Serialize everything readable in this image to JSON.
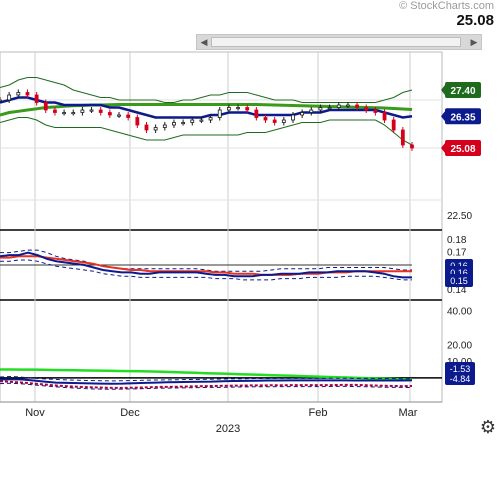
{
  "header": {
    "watermark": "© StockCharts.com",
    "last_price": "25.08"
  },
  "colors": {
    "price_candle_up": "#1a1a1a",
    "price_candle_down": "#d4001c",
    "bollinger": "#1e6b1e",
    "ma_short": "#0b1a8c",
    "ma_long": "#3a9a1a",
    "panel2_blue": "#0b1a8c",
    "panel2_red": "#e8311e",
    "panel3_green": "#22dd22",
    "panel3_blue": "#0b1a8c",
    "panel3_red": "#b0003c",
    "tag_green": "#1e6b1e",
    "tag_blue": "#0b1a8c",
    "tag_red": "#d4001c"
  },
  "chart_data": [
    {
      "type": "line",
      "panel": "price",
      "x_labels": [
        "Nov",
        "Dec",
        "Feb",
        "Mar"
      ],
      "x_year_label": "2023",
      "y_ticks": [
        "22.50"
      ],
      "price_tags": [
        "27.40",
        "26.35",
        "25.08"
      ],
      "ylim": [
        22.0,
        28.6
      ],
      "series": [
        {
          "role": "close",
          "values": [
            27.0,
            27.2,
            27.3,
            27.2,
            26.9,
            26.6,
            26.5,
            26.5,
            26.5,
            26.6,
            26.6,
            26.5,
            26.4,
            26.4,
            26.3,
            26.0,
            25.8,
            25.9,
            26.0,
            26.1,
            26.1,
            26.2,
            26.2,
            26.3,
            26.6,
            26.7,
            26.7,
            26.6,
            26.3,
            26.2,
            26.1,
            26.2,
            26.4,
            26.5,
            26.6,
            26.7,
            26.7,
            26.8,
            26.8,
            26.7,
            26.6,
            26.5,
            26.2,
            25.8,
            25.2,
            25.08
          ]
        },
        {
          "role": "ma_short",
          "values": [
            26.9,
            27.0,
            27.1,
            27.1,
            27.0,
            26.9,
            26.9,
            26.8,
            26.8,
            26.8,
            26.8,
            26.8,
            26.7,
            26.7,
            26.6,
            26.5,
            26.4,
            26.3,
            26.3,
            26.3,
            26.3,
            26.3,
            26.3,
            26.4,
            26.4,
            26.5,
            26.5,
            26.5,
            26.4,
            26.4,
            26.4,
            26.4,
            26.4,
            26.5,
            26.5,
            26.5,
            26.6,
            26.6,
            26.6,
            26.6,
            26.6,
            26.6,
            26.5,
            26.4,
            26.3,
            26.35
          ]
        },
        {
          "role": "ma_long",
          "values": [
            26.4,
            26.5,
            26.55,
            26.6,
            26.65,
            26.7,
            26.72,
            26.75,
            26.77,
            26.78,
            26.8,
            26.8,
            26.81,
            26.82,
            26.82,
            26.82,
            26.82,
            26.82,
            26.82,
            26.82,
            26.82,
            26.82,
            26.82,
            26.82,
            26.82,
            26.82,
            26.82,
            26.82,
            26.82,
            26.81,
            26.8,
            26.79,
            26.78,
            26.77,
            26.76,
            26.75,
            26.74,
            26.73,
            26.72,
            26.71,
            26.7,
            26.69,
            26.68,
            26.66,
            26.64,
            26.62
          ]
        },
        {
          "role": "bb_upper",
          "values": [
            27.5,
            27.6,
            27.8,
            27.9,
            27.9,
            27.8,
            27.7,
            27.6,
            27.4,
            27.3,
            27.2,
            27.1,
            27.1,
            27.0,
            27.0,
            27.0,
            27.0,
            27.0,
            26.9,
            26.9,
            27.0,
            27.0,
            27.1,
            27.2,
            27.2,
            27.3,
            27.3,
            27.3,
            27.2,
            27.1,
            27.0,
            27.0,
            27.0,
            26.9,
            26.9,
            26.9,
            26.9,
            26.9,
            26.9,
            26.9,
            26.9,
            26.9,
            27.0,
            27.1,
            27.3,
            27.4
          ]
        },
        {
          "role": "bb_lower",
          "values": [
            26.1,
            26.2,
            26.3,
            26.3,
            26.2,
            26.0,
            25.9,
            25.9,
            25.9,
            25.9,
            25.9,
            25.9,
            25.8,
            25.7,
            25.6,
            25.5,
            25.4,
            25.4,
            25.4,
            25.5,
            25.6,
            25.6,
            25.6,
            25.6,
            25.6,
            25.6,
            25.6,
            25.7,
            25.7,
            25.7,
            25.8,
            25.9,
            26.0,
            26.1,
            26.1,
            26.1,
            26.2,
            26.2,
            26.2,
            26.2,
            26.2,
            26.2,
            26.0,
            25.7,
            25.4,
            25.2
          ]
        }
      ]
    },
    {
      "type": "line",
      "panel": "indicator-2",
      "y_ticks": [
        "0.18",
        "0.17",
        "0.14"
      ],
      "value_tags": [
        "0.16",
        "0.16",
        "0.15"
      ],
      "ylim": [
        0.135,
        0.185
      ],
      "series": [
        {
          "role": "blue",
          "values": [
            0.167,
            0.168,
            0.168,
            0.17,
            0.168,
            0.165,
            0.163,
            0.162,
            0.161,
            0.16,
            0.158,
            0.156,
            0.155,
            0.154,
            0.154,
            0.153,
            0.153,
            0.154,
            0.154,
            0.154,
            0.154,
            0.154,
            0.153,
            0.152,
            0.152,
            0.151,
            0.151,
            0.151,
            0.152,
            0.152,
            0.153,
            0.153,
            0.153,
            0.154,
            0.154,
            0.154,
            0.155,
            0.155,
            0.155,
            0.155,
            0.154,
            0.153,
            0.151,
            0.15,
            0.15
          ]
        },
        {
          "role": "red",
          "values": [
            0.166,
            0.166,
            0.167,
            0.167,
            0.167,
            0.166,
            0.165,
            0.164,
            0.163,
            0.162,
            0.161,
            0.159,
            0.158,
            0.157,
            0.156,
            0.156,
            0.155,
            0.155,
            0.155,
            0.155,
            0.155,
            0.155,
            0.155,
            0.154,
            0.154,
            0.153,
            0.153,
            0.153,
            0.152,
            0.152,
            0.152,
            0.152,
            0.153,
            0.153,
            0.153,
            0.154,
            0.154,
            0.154,
            0.155,
            0.155,
            0.155,
            0.155,
            0.155,
            0.155,
            0.155
          ]
        },
        {
          "role": "upper_band",
          "values": [
            0.17,
            0.17,
            0.171,
            0.172,
            0.172,
            0.17,
            0.167,
            0.165,
            0.164,
            0.163,
            0.161,
            0.159,
            0.158,
            0.157,
            0.157,
            0.157,
            0.157,
            0.157,
            0.157,
            0.157,
            0.157,
            0.157,
            0.156,
            0.155,
            0.155,
            0.155,
            0.155,
            0.155,
            0.155,
            0.156,
            0.157,
            0.157,
            0.157,
            0.157,
            0.157,
            0.158,
            0.158,
            0.158,
            0.158,
            0.158,
            0.158,
            0.158,
            0.157,
            0.156,
            0.156
          ]
        },
        {
          "role": "lower_band",
          "values": [
            0.163,
            0.163,
            0.164,
            0.164,
            0.163,
            0.161,
            0.159,
            0.158,
            0.157,
            0.156,
            0.155,
            0.153,
            0.152,
            0.151,
            0.151,
            0.15,
            0.15,
            0.15,
            0.15,
            0.15,
            0.15,
            0.15,
            0.15,
            0.149,
            0.149,
            0.149,
            0.148,
            0.148,
            0.148,
            0.148,
            0.149,
            0.149,
            0.149,
            0.15,
            0.15,
            0.15,
            0.15,
            0.151,
            0.151,
            0.151,
            0.151,
            0.15,
            0.149,
            0.148,
            0.148
          ]
        },
        {
          "role": "reference",
          "values": [
            0.16,
            0.16
          ]
        }
      ]
    },
    {
      "type": "line",
      "panel": "indicator-3",
      "y_ticks": [
        "40.00",
        "20.00",
        "10.00"
      ],
      "value_tags": [
        "-1.53",
        "-4.84"
      ],
      "ylim": [
        -12,
        44
      ],
      "series": [
        {
          "role": "green",
          "values": [
            5.0,
            5.0,
            4.9,
            4.9,
            4.8,
            4.7,
            4.6,
            4.5,
            4.4,
            4.3,
            4.2,
            4.1,
            4.0,
            3.9,
            3.8,
            3.6,
            3.4,
            3.2,
            3.0,
            2.8,
            2.6,
            2.4,
            2.2,
            2.0,
            1.8,
            1.6,
            1.4,
            1.2,
            1.0,
            0.8,
            0.6,
            0.4,
            0.2,
            0.0,
            -0.2,
            -0.4,
            -0.6,
            -0.8,
            -1.0
          ]
        },
        {
          "role": "blue",
          "values": [
            -1.0,
            -0.8,
            -1.0,
            -1.6,
            -2.2,
            -2.8,
            -3.0,
            -3.1,
            -3.3,
            -3.4,
            -3.5,
            -3.4,
            -3.2,
            -3.0,
            -2.8,
            -2.6,
            -2.5,
            -2.4,
            -2.3,
            -2.2,
            -2.0,
            -1.9,
            -1.8,
            -1.7,
            -1.6,
            -1.6,
            -1.5,
            -1.5,
            -1.5,
            -1.5,
            -1.5,
            -1.5,
            -1.6,
            -1.6,
            -1.6,
            -1.6,
            -1.55,
            -1.53
          ]
        },
        {
          "role": "red",
          "values": [
            -2.0,
            -2.4,
            -2.8,
            -3.4,
            -4.0,
            -4.6,
            -5.0,
            -5.4,
            -5.6,
            -5.8,
            -6.0,
            -6.0,
            -5.8,
            -5.6,
            -5.4,
            -5.3,
            -5.2,
            -5.0,
            -4.9,
            -4.8,
            -4.7,
            -4.6,
            -4.5,
            -4.5,
            -4.4,
            -4.4,
            -4.3,
            -4.3,
            -4.3,
            -4.3,
            -4.2,
            -4.2,
            -4.4,
            -4.6,
            -4.8,
            -4.9,
            -4.84
          ]
        },
        {
          "role": "upper_band",
          "values": [
            0.5,
            0.8,
            0.4,
            -0.2,
            -0.6,
            -0.9,
            -1.2,
            -1.4,
            -1.6,
            -1.7,
            -1.8,
            -1.7,
            -1.6,
            -1.4,
            -1.3,
            -1.2,
            -1.1,
            -1.0,
            -0.9,
            -0.8,
            -0.7,
            -0.6,
            -0.5,
            -0.4,
            -0.4,
            -0.3,
            -0.3,
            -0.3,
            -0.3,
            -0.3,
            -0.2,
            -0.2,
            -0.3,
            -0.3,
            -0.4,
            -0.4,
            -0.5,
            -0.5
          ]
        },
        {
          "role": "lower_band",
          "values": [
            -3.4,
            -3.2,
            -3.6,
            -4.2,
            -4.8,
            -5.4,
            -5.8,
            -6.2,
            -6.5,
            -6.7,
            -6.8,
            -6.7,
            -6.6,
            -6.4,
            -6.2,
            -6.1,
            -6.0,
            -5.9,
            -5.8,
            -5.7,
            -5.6,
            -5.5,
            -5.4,
            -5.3,
            -5.3,
            -5.2,
            -5.2,
            -5.2,
            -5.2,
            -5.2,
            -5.1,
            -5.1,
            -5.2,
            -5.3,
            -5.5,
            -5.6,
            -5.7,
            -5.8
          ]
        }
      ]
    }
  ]
}
